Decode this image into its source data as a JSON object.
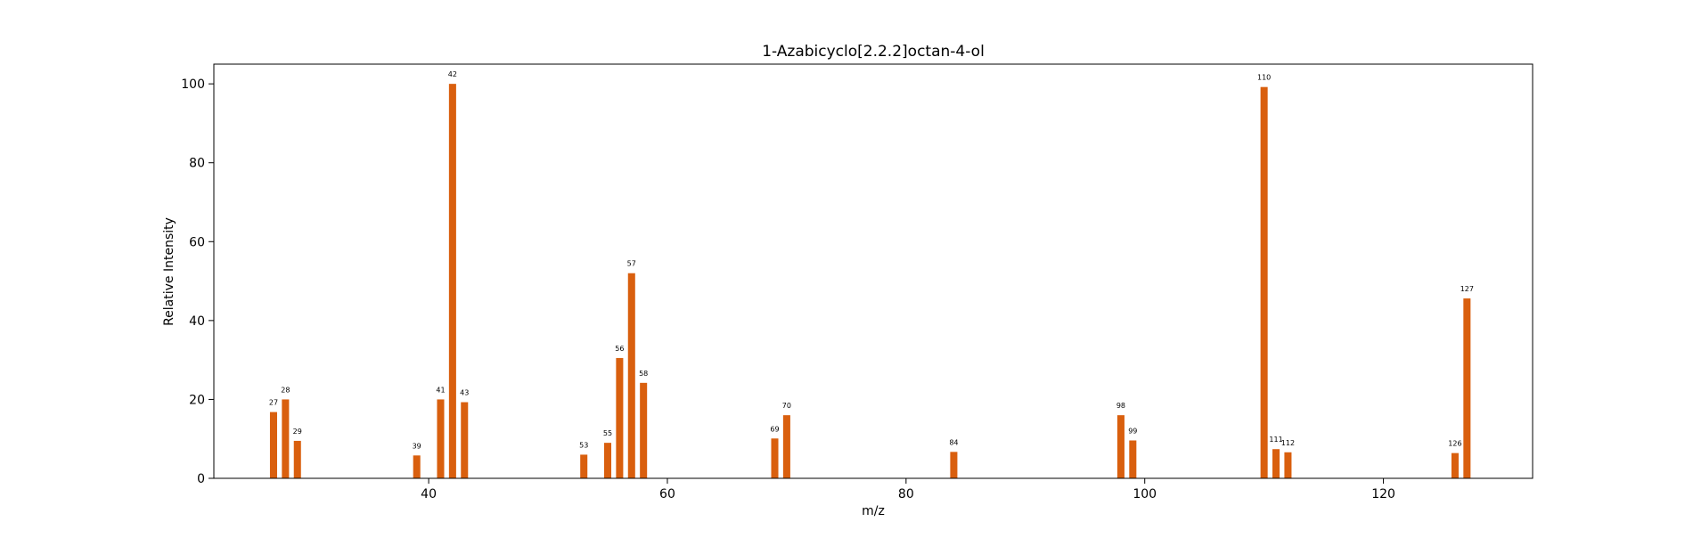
{
  "chart_data": {
    "type": "bar",
    "title": "1-Azabicyclo[2.2.2]octan-4-ol",
    "xlabel": "m/z",
    "ylabel": "Relative Intensity",
    "xlim": [
      22,
      132.5
    ],
    "ylim": [
      0,
      105
    ],
    "xticks": [
      40,
      60,
      80,
      100,
      120
    ],
    "yticks": [
      0,
      20,
      40,
      60,
      80,
      100
    ],
    "grid": false,
    "bar_color": "#d95f0e",
    "x": [
      27,
      28,
      29,
      39,
      41,
      42,
      43,
      53,
      55,
      56,
      57,
      58,
      69,
      70,
      84,
      98,
      99,
      110,
      111,
      112,
      126,
      127
    ],
    "values": [
      16.8,
      20.0,
      9.5,
      5.8,
      20.0,
      100.0,
      19.3,
      6.0,
      9.0,
      30.5,
      52.0,
      24.2,
      10.1,
      16.0,
      6.7,
      16.0,
      9.6,
      99.2,
      7.4,
      6.6,
      6.4,
      45.6
    ],
    "labels": [
      "27",
      "28",
      "29",
      "39",
      "41",
      "42",
      "43",
      "53",
      "55",
      "56",
      "57",
      "58",
      "69",
      "70",
      "84",
      "98",
      "99",
      "110",
      "111",
      "112",
      "126",
      "127"
    ]
  }
}
